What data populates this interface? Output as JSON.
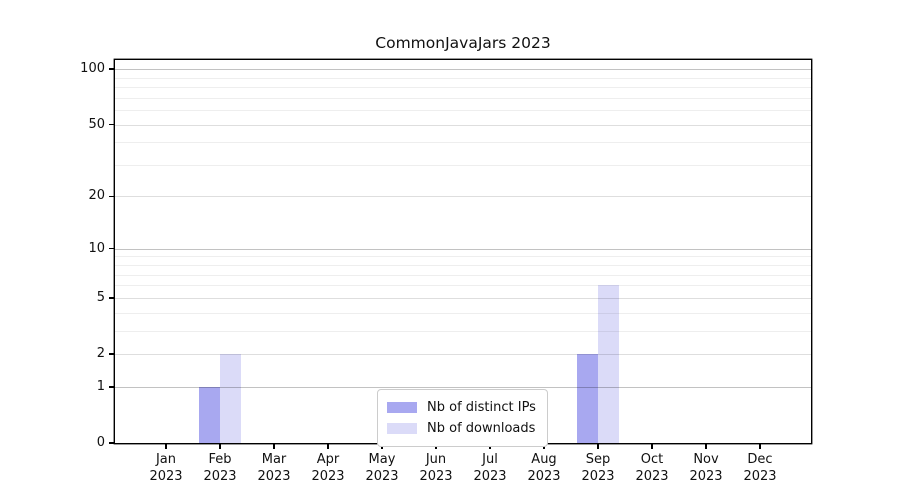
{
  "title": "CommonJavaJars 2023",
  "chart_data": {
    "type": "bar",
    "title": "CommonJavaJars 2023",
    "x_tick_labels": [
      {
        "month": "Jan",
        "year": "2023"
      },
      {
        "month": "Feb",
        "year": "2023"
      },
      {
        "month": "Mar",
        "year": "2023"
      },
      {
        "month": "Apr",
        "year": "2023"
      },
      {
        "month": "May",
        "year": "2023"
      },
      {
        "month": "Jun",
        "year": "2023"
      },
      {
        "month": "Jul",
        "year": "2023"
      },
      {
        "month": "Aug",
        "year": "2023"
      },
      {
        "month": "Sep",
        "year": "2023"
      },
      {
        "month": "Oct",
        "year": "2023"
      },
      {
        "month": "Nov",
        "year": "2023"
      },
      {
        "month": "Dec",
        "year": "2023"
      }
    ],
    "series": [
      {
        "name": "Nb of distinct IPs",
        "color": "#a8a8f0",
        "values": [
          0,
          1,
          0,
          0,
          0,
          0,
          0,
          0,
          2,
          0,
          0,
          0
        ]
      },
      {
        "name": "Nb of downloads",
        "color": "#dbdbf8",
        "values": [
          0,
          2,
          0,
          0,
          0,
          0,
          0,
          0,
          6,
          0,
          0,
          0
        ]
      }
    ],
    "yscale": "log1p",
    "ylim": [
      0,
      140
    ],
    "y_major_ticks": [
      0,
      1,
      2,
      5,
      10,
      20,
      50,
      100
    ],
    "y_power_gridlines": [
      1,
      10,
      100
    ],
    "y_minor_gridlines": [
      3,
      4,
      6,
      7,
      8,
      9,
      30,
      40,
      60,
      70,
      80,
      90
    ],
    "grid": "horizontal",
    "legend_position": "lower center"
  }
}
